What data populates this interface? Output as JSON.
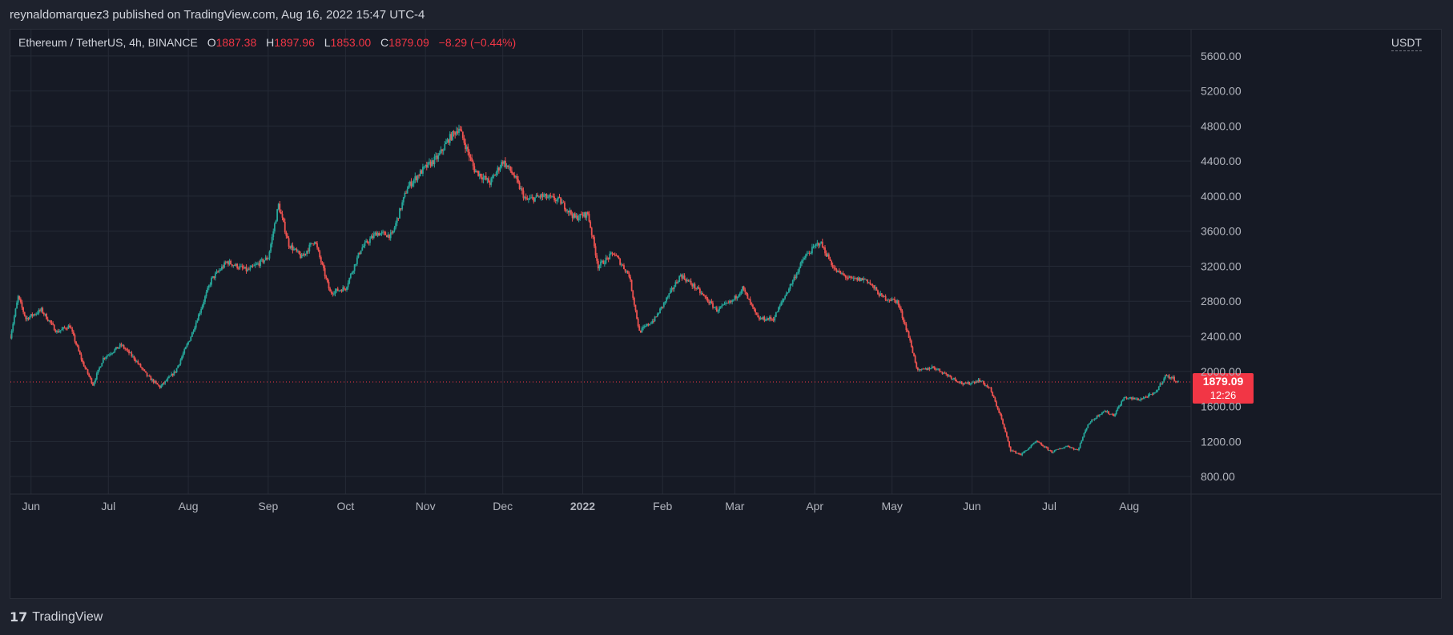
{
  "header": {
    "published_text": "reynaldomarquez3 published on TradingView.com, Aug 16, 2022 15:47 UTC-4"
  },
  "legend": {
    "symbol": "Ethereum / TetherUS, 4h, BINANCE",
    "open_label": "O",
    "open": "1887.38",
    "high_label": "H",
    "high": "1897.96",
    "low_label": "L",
    "low": "1853.00",
    "close_label": "C",
    "close": "1879.09",
    "change": "−8.29 (−0.44%)"
  },
  "axis": {
    "currency": "USDT"
  },
  "last_price": {
    "price": "1879.09",
    "countdown": "12:26"
  },
  "footer": {
    "brand": "TradingView",
    "logo_icon": "tradingview-logo-icon"
  },
  "colors": {
    "up": "#26a69a",
    "down": "#ef5350",
    "background": "#161a25",
    "grid": "#252a36",
    "last_price": "#f23645"
  },
  "chart_data": {
    "type": "candlestick",
    "title": "Ethereum / TetherUS, 4h, BINANCE",
    "ylabel": "USDT",
    "ylim": [
      600,
      5900
    ],
    "yticks": [
      800,
      1200,
      1600,
      2000,
      2400,
      2800,
      3200,
      3600,
      4000,
      4400,
      4800,
      5200,
      5600
    ],
    "ytick_labels": [
      "800.00",
      "1200.00",
      "1600.00",
      "2000.00",
      "2400.00",
      "2800.00",
      "3200.00",
      "3600.00",
      "4000.00",
      "4400.00",
      "4800.00",
      "5200.00",
      "5600.00"
    ],
    "x_range_days": [
      -8,
      450
    ],
    "x_ticks": [
      {
        "label": "Jun",
        "day": 0
      },
      {
        "label": "Jul",
        "day": 30
      },
      {
        "label": "Aug",
        "day": 61
      },
      {
        "label": "Sep",
        "day": 92
      },
      {
        "label": "Oct",
        "day": 122
      },
      {
        "label": "Nov",
        "day": 153
      },
      {
        "label": "Dec",
        "day": 183
      },
      {
        "label": "2022",
        "day": 214,
        "bold": true
      },
      {
        "label": "Feb",
        "day": 245
      },
      {
        "label": "Mar",
        "day": 273
      },
      {
        "label": "Apr",
        "day": 304
      },
      {
        "label": "May",
        "day": 334
      },
      {
        "label": "Jun",
        "day": 365
      },
      {
        "label": "Jul",
        "day": 395
      },
      {
        "label": "Aug",
        "day": 426
      }
    ],
    "grid": true,
    "last_price_line": 1879.09,
    "approx_close_path": [
      {
        "day": -8,
        "close": 2400
      },
      {
        "day": -5,
        "close": 2850
      },
      {
        "day": -2,
        "close": 2600
      },
      {
        "day": 4,
        "close": 2700
      },
      {
        "day": 10,
        "close": 2450
      },
      {
        "day": 15,
        "close": 2520
      },
      {
        "day": 20,
        "close": 2100
      },
      {
        "day": 24,
        "close": 1850
      },
      {
        "day": 28,
        "close": 2150
      },
      {
        "day": 35,
        "close": 2300
      },
      {
        "day": 40,
        "close": 2150
      },
      {
        "day": 45,
        "close": 1950
      },
      {
        "day": 50,
        "close": 1820
      },
      {
        "day": 56,
        "close": 2000
      },
      {
        "day": 62,
        "close": 2400
      },
      {
        "day": 70,
        "close": 3050
      },
      {
        "day": 76,
        "close": 3250
      },
      {
        "day": 84,
        "close": 3150
      },
      {
        "day": 92,
        "close": 3300
      },
      {
        "day": 96,
        "close": 3900
      },
      {
        "day": 100,
        "close": 3450
      },
      {
        "day": 105,
        "close": 3300
      },
      {
        "day": 110,
        "close": 3500
      },
      {
        "day": 116,
        "close": 2900
      },
      {
        "day": 122,
        "close": 2950
      },
      {
        "day": 128,
        "close": 3400
      },
      {
        "day": 134,
        "close": 3580
      },
      {
        "day": 140,
        "close": 3550
      },
      {
        "day": 146,
        "close": 4100
      },
      {
        "day": 152,
        "close": 4300
      },
      {
        "day": 158,
        "close": 4450
      },
      {
        "day": 162,
        "close": 4650
      },
      {
        "day": 166,
        "close": 4780
      },
      {
        "day": 172,
        "close": 4300
      },
      {
        "day": 178,
        "close": 4150
      },
      {
        "day": 183,
        "close": 4400
      },
      {
        "day": 187,
        "close": 4250
      },
      {
        "day": 192,
        "close": 3950
      },
      {
        "day": 198,
        "close": 4000
      },
      {
        "day": 205,
        "close": 3950
      },
      {
        "day": 211,
        "close": 3750
      },
      {
        "day": 216,
        "close": 3800
      },
      {
        "day": 220,
        "close": 3200
      },
      {
        "day": 226,
        "close": 3350
      },
      {
        "day": 232,
        "close": 3100
      },
      {
        "day": 236,
        "close": 2450
      },
      {
        "day": 242,
        "close": 2600
      },
      {
        "day": 246,
        "close": 2800
      },
      {
        "day": 252,
        "close": 3100
      },
      {
        "day": 258,
        "close": 2950
      },
      {
        "day": 266,
        "close": 2700
      },
      {
        "day": 272,
        "close": 2800
      },
      {
        "day": 276,
        "close": 2950
      },
      {
        "day": 282,
        "close": 2600
      },
      {
        "day": 288,
        "close": 2600
      },
      {
        "day": 294,
        "close": 2950
      },
      {
        "day": 300,
        "close": 3300
      },
      {
        "day": 306,
        "close": 3480
      },
      {
        "day": 312,
        "close": 3150
      },
      {
        "day": 318,
        "close": 3050
      },
      {
        "day": 324,
        "close": 3050
      },
      {
        "day": 330,
        "close": 2850
      },
      {
        "day": 336,
        "close": 2800
      },
      {
        "day": 340,
        "close": 2450
      },
      {
        "day": 344,
        "close": 2000
      },
      {
        "day": 350,
        "close": 2050
      },
      {
        "day": 356,
        "close": 1950
      },
      {
        "day": 362,
        "close": 1850
      },
      {
        "day": 368,
        "close": 1900
      },
      {
        "day": 372,
        "close": 1800
      },
      {
        "day": 376,
        "close": 1500
      },
      {
        "day": 380,
        "close": 1100
      },
      {
        "day": 384,
        "close": 1050
      },
      {
        "day": 390,
        "close": 1200
      },
      {
        "day": 396,
        "close": 1080
      },
      {
        "day": 402,
        "close": 1150
      },
      {
        "day": 406,
        "close": 1100
      },
      {
        "day": 410,
        "close": 1400
      },
      {
        "day": 416,
        "close": 1550
      },
      {
        "day": 420,
        "close": 1500
      },
      {
        "day": 424,
        "close": 1700
      },
      {
        "day": 430,
        "close": 1680
      },
      {
        "day": 436,
        "close": 1750
      },
      {
        "day": 440,
        "close": 1950
      },
      {
        "day": 443,
        "close": 1920
      },
      {
        "day": 445,
        "close": 1879
      }
    ]
  }
}
